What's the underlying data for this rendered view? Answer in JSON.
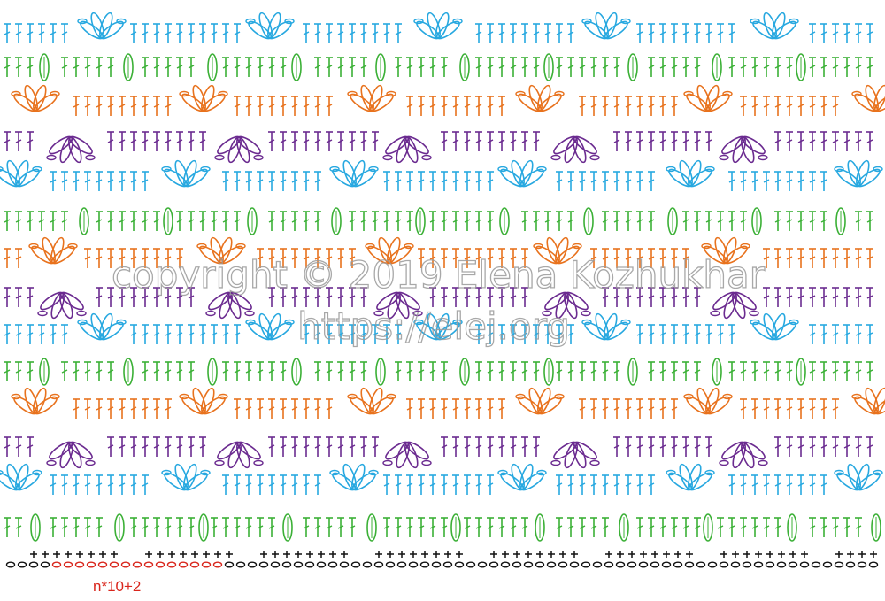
{
  "watermark": {
    "line1": "copyright © 2019 Elena Kozhukhar",
    "line2": "https://elej.org"
  },
  "repeat_label": "n*10+2"
}
